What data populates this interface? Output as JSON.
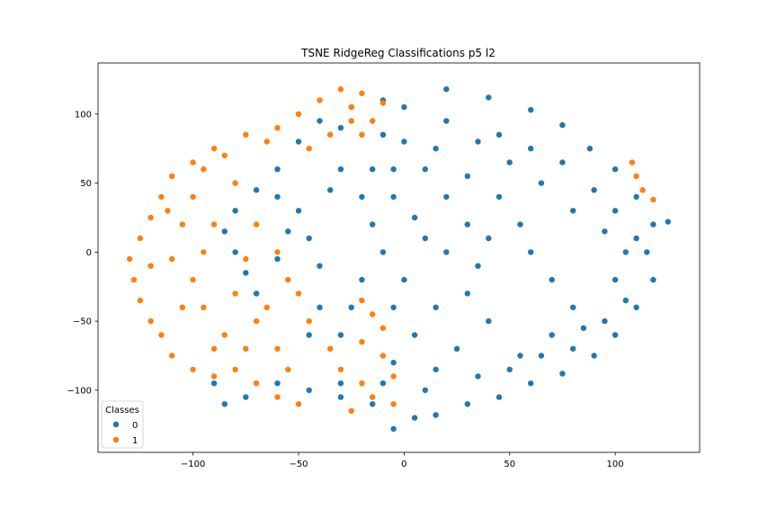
{
  "chart_data": {
    "type": "scatter",
    "title": "TSNE RidgeReg Classifications p5 l2",
    "xlabel": "",
    "ylabel": "",
    "xlim": [
      -145,
      140
    ],
    "ylim": [
      -145,
      137
    ],
    "xticks": [
      -100,
      -50,
      0,
      50,
      100
    ],
    "yticks": [
      -100,
      -50,
      0,
      50,
      100
    ],
    "xtick_labels": [
      "−100",
      "−50",
      "0",
      "50",
      "100"
    ],
    "ytick_labels": [
      "−100",
      "−50",
      "0",
      "50",
      "100"
    ],
    "grid": false,
    "legend": {
      "title": "Classes",
      "position": "lower-left"
    },
    "series": [
      {
        "name": "0",
        "color": "#1f77b4",
        "points": [
          [
            -10,
            110
          ],
          [
            0,
            105
          ],
          [
            20,
            118
          ],
          [
            40,
            112
          ],
          [
            60,
            103
          ],
          [
            75,
            92
          ],
          [
            88,
            75
          ],
          [
            100,
            60
          ],
          [
            110,
            40
          ],
          [
            118,
            20
          ],
          [
            125,
            22
          ],
          [
            115,
            0
          ],
          [
            118,
            -20
          ],
          [
            110,
            -40
          ],
          [
            100,
            -60
          ],
          [
            90,
            -75
          ],
          [
            75,
            -88
          ],
          [
            60,
            -95
          ],
          [
            45,
            -105
          ],
          [
            30,
            -110
          ],
          [
            15,
            -118
          ],
          [
            5,
            -120
          ],
          [
            -5,
            -128
          ],
          [
            -15,
            -110
          ],
          [
            -30,
            -105
          ],
          [
            -45,
            -100
          ],
          [
            -60,
            -95
          ],
          [
            -75,
            -105
          ],
          [
            -90,
            -95
          ],
          [
            -85,
            -110
          ],
          [
            -60,
            60
          ],
          [
            -70,
            45
          ],
          [
            -80,
            30
          ],
          [
            -85,
            15
          ],
          [
            -80,
            0
          ],
          [
            -75,
            -15
          ],
          [
            -70,
            -30
          ],
          [
            -50,
            80
          ],
          [
            -40,
            95
          ],
          [
            -30,
            90
          ],
          [
            -25,
            105
          ],
          [
            -10,
            85
          ],
          [
            -60,
            40
          ],
          [
            -50,
            30
          ],
          [
            -45,
            10
          ],
          [
            -40,
            -10
          ],
          [
            -40,
            -40
          ],
          [
            -45,
            -60
          ],
          [
            -30,
            60
          ],
          [
            -20,
            40
          ],
          [
            -15,
            20
          ],
          [
            -10,
            0
          ],
          [
            -20,
            -20
          ],
          [
            -25,
            -40
          ],
          [
            -30,
            -60
          ],
          [
            0,
            80
          ],
          [
            10,
            60
          ],
          [
            20,
            40
          ],
          [
            30,
            20
          ],
          [
            10,
            10
          ],
          [
            0,
            -20
          ],
          [
            15,
            -40
          ],
          [
            5,
            -60
          ],
          [
            -5,
            -80
          ],
          [
            20,
            95
          ],
          [
            35,
            80
          ],
          [
            50,
            65
          ],
          [
            65,
            50
          ],
          [
            80,
            30
          ],
          [
            95,
            15
          ],
          [
            105,
            0
          ],
          [
            100,
            -20
          ],
          [
            45,
            40
          ],
          [
            55,
            20
          ],
          [
            60,
            0
          ],
          [
            70,
            -20
          ],
          [
            80,
            -40
          ],
          [
            85,
            -55
          ],
          [
            70,
            -60
          ],
          [
            55,
            -75
          ],
          [
            40,
            10
          ],
          [
            35,
            -10
          ],
          [
            30,
            -30
          ],
          [
            40,
            -50
          ],
          [
            25,
            -70
          ],
          [
            15,
            -85
          ],
          [
            35,
            -90
          ],
          [
            50,
            -85
          ],
          [
            -5,
            60
          ],
          [
            15,
            75
          ],
          [
            30,
            55
          ],
          [
            45,
            85
          ],
          [
            60,
            75
          ],
          [
            75,
            65
          ],
          [
            90,
            45
          ],
          [
            100,
            30
          ],
          [
            -15,
            60
          ],
          [
            -35,
            45
          ],
          [
            -55,
            15
          ],
          [
            -60,
            -5
          ],
          [
            -5,
            40
          ],
          [
            5,
            25
          ],
          [
            20,
            0
          ],
          [
            -5,
            -40
          ],
          [
            65,
            -75
          ],
          [
            80,
            -70
          ],
          [
            95,
            -50
          ],
          [
            105,
            -35
          ],
          [
            110,
            10
          ],
          [
            -30,
            -95
          ],
          [
            -10,
            -95
          ],
          [
            10,
            -100
          ]
        ]
      },
      {
        "name": "1",
        "color": "#ff7f0e",
        "points": [
          [
            -50,
            100
          ],
          [
            -40,
            110
          ],
          [
            -30,
            118
          ],
          [
            -20,
            115
          ],
          [
            -10,
            108
          ],
          [
            -25,
            95
          ],
          [
            -20,
            85
          ],
          [
            -60,
            90
          ],
          [
            -75,
            85
          ],
          [
            -90,
            75
          ],
          [
            -100,
            65
          ],
          [
            -110,
            55
          ],
          [
            -115,
            40
          ],
          [
            -120,
            25
          ],
          [
            -125,
            10
          ],
          [
            -130,
            -5
          ],
          [
            -128,
            -20
          ],
          [
            -125,
            -35
          ],
          [
            -120,
            -50
          ],
          [
            -115,
            -60
          ],
          [
            -110,
            -75
          ],
          [
            -100,
            -85
          ],
          [
            -90,
            -90
          ],
          [
            -80,
            -85
          ],
          [
            -70,
            -95
          ],
          [
            -60,
            -105
          ],
          [
            -50,
            -110
          ],
          [
            -100,
            40
          ],
          [
            -90,
            20
          ],
          [
            -95,
            0
          ],
          [
            -100,
            -20
          ],
          [
            -95,
            -40
          ],
          [
            -85,
            -60
          ],
          [
            -75,
            -70
          ],
          [
            -80,
            50
          ],
          [
            -70,
            20
          ],
          [
            -75,
            -5
          ],
          [
            -80,
            -30
          ],
          [
            -70,
            -50
          ],
          [
            -60,
            -70
          ],
          [
            -55,
            -85
          ],
          [
            -105,
            20
          ],
          [
            -110,
            -5
          ],
          [
            -105,
            -40
          ],
          [
            -90,
            -70
          ],
          [
            -65,
            -40
          ],
          [
            -55,
            -20
          ],
          [
            -60,
            0
          ],
          [
            -50,
            -30
          ],
          [
            -45,
            -50
          ],
          [
            -35,
            -70
          ],
          [
            -30,
            -85
          ],
          [
            -20,
            -95
          ],
          [
            -15,
            -105
          ],
          [
            -25,
            -115
          ],
          [
            -20,
            -35
          ],
          [
            -15,
            -45
          ],
          [
            -10,
            -55
          ],
          [
            -20,
            -65
          ],
          [
            -10,
            -75
          ],
          [
            -5,
            -90
          ],
          [
            -5,
            -110
          ],
          [
            -25,
            105
          ],
          [
            -15,
            95
          ],
          [
            -35,
            85
          ],
          [
            110,
            55
          ],
          [
            113,
            45
          ],
          [
            118,
            38
          ],
          [
            108,
            65
          ],
          [
            -120,
            -10
          ],
          [
            -112,
            30
          ],
          [
            -95,
            60
          ],
          [
            -85,
            70
          ],
          [
            -65,
            80
          ],
          [
            -45,
            75
          ]
        ]
      }
    ]
  }
}
